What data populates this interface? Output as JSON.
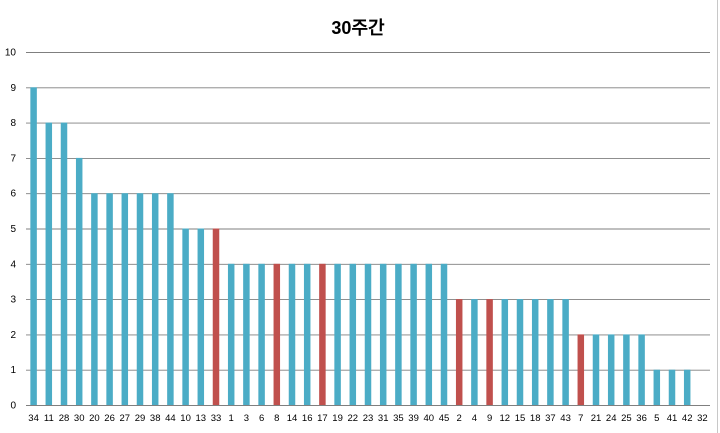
{
  "chart_data": {
    "type": "bar",
    "title": "30주간",
    "xlabel": "",
    "ylabel": "",
    "ylim": [
      0,
      10
    ],
    "yticks": [
      0,
      1,
      2,
      3,
      4,
      5,
      6,
      7,
      8,
      9,
      10
    ],
    "grid": true,
    "legend": "none",
    "categories": [
      "34",
      "11",
      "28",
      "30",
      "20",
      "26",
      "27",
      "29",
      "38",
      "44",
      "10",
      "13",
      "33",
      "1",
      "3",
      "6",
      "8",
      "14",
      "16",
      "17",
      "19",
      "22",
      "23",
      "31",
      "35",
      "39",
      "40",
      "45",
      "2",
      "4",
      "9",
      "12",
      "15",
      "18",
      "37",
      "43",
      "7",
      "21",
      "24",
      "25",
      "36",
      "5",
      "41",
      "42",
      "32"
    ],
    "values": [
      9,
      8,
      8,
      7,
      6,
      6,
      6,
      6,
      6,
      6,
      5,
      5,
      5,
      4,
      4,
      4,
      4,
      4,
      4,
      4,
      4,
      4,
      4,
      4,
      4,
      4,
      4,
      4,
      3,
      3,
      3,
      3,
      3,
      3,
      3,
      3,
      2,
      2,
      2,
      2,
      2,
      1,
      1,
      1,
      0
    ],
    "highlighted": [
      "33",
      "8",
      "17",
      "2",
      "9",
      "7"
    ],
    "colors": {
      "default": "#4bacc6",
      "highlight": "#c0504d"
    }
  }
}
